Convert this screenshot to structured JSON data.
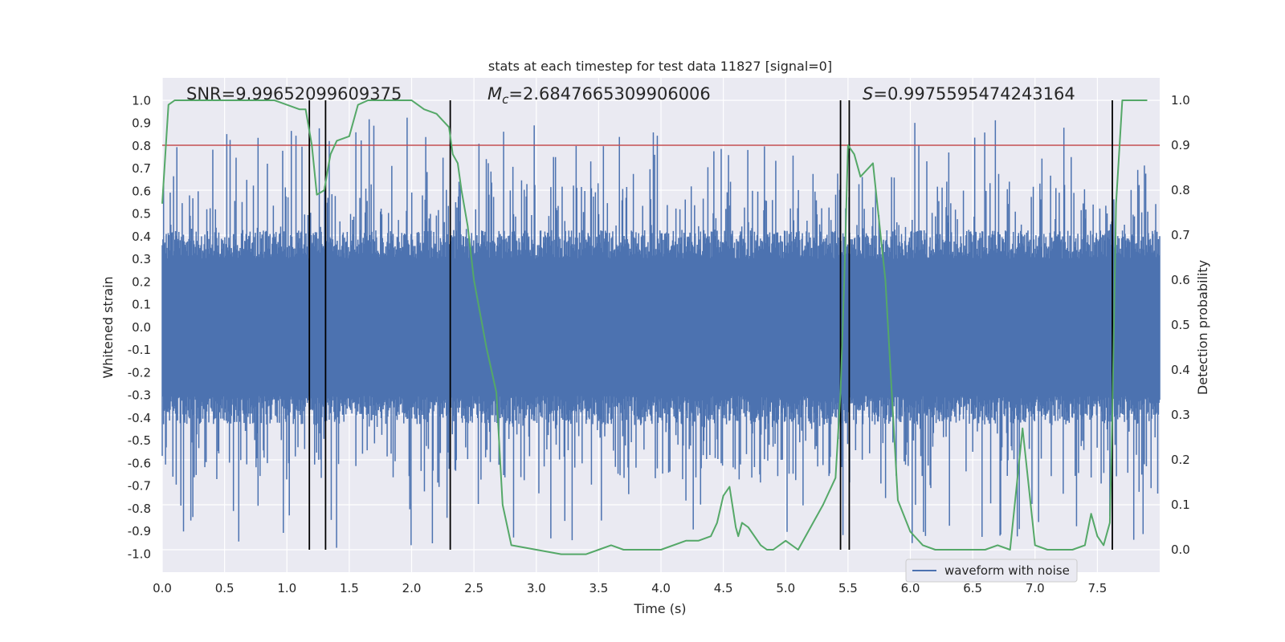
{
  "chart_data": {
    "type": "line",
    "title": "stats at each timestep for test data 11827 [signal=0]",
    "xlabel": "Time (s)",
    "ylabel_left": "Whitened strain",
    "ylabel_right": "Detection probability",
    "xlim": [
      0.0,
      8.0
    ],
    "ylim_left": [
      -1.08,
      1.1
    ],
    "ylim_right": [
      -0.05,
      1.05
    ],
    "x_ticks": [
      "0.0",
      "0.5",
      "1.0",
      "1.5",
      "2.0",
      "2.5",
      "3.0",
      "3.5",
      "4.0",
      "4.5",
      "5.0",
      "5.5",
      "6.0",
      "6.5",
      "7.0",
      "7.5"
    ],
    "y_left_ticks": [
      "-1.0",
      "-0.9",
      "-0.8",
      "-0.7",
      "-0.6",
      "-0.5",
      "-0.4",
      "-0.3",
      "-0.2",
      "-0.1",
      "0.0",
      "0.1",
      "0.2",
      "0.3",
      "0.4",
      "0.5",
      "0.6",
      "0.7",
      "0.8",
      "0.9",
      "1.0"
    ],
    "y_right_ticks": [
      "0.0",
      "0.1",
      "0.2",
      "0.3",
      "0.4",
      "0.5",
      "0.6",
      "0.7",
      "0.8",
      "0.9",
      "1.0"
    ],
    "annotations": {
      "snr": "SNR=9.99652099609375",
      "mc_symbol": "M",
      "mc_sub": "c",
      "mc_value": "=2.6847665309906006",
      "s_symbol": "S",
      "s_value": "=0.9975595474243164"
    },
    "threshold": {
      "value": 0.9,
      "axis": "right",
      "color": "#c44e52"
    },
    "event_lines": [
      1.18,
      1.31,
      2.31,
      5.44,
      5.51,
      7.62
    ],
    "legend": {
      "label": "waveform with noise",
      "position": "lower-right"
    },
    "series": [
      {
        "name": "waveform with noise",
        "axis": "left",
        "color": "#4c72b0",
        "kind": "noise",
        "typical_range": [
          -0.42,
          0.42
        ],
        "peak_range": [
          -0.98,
          0.93
        ]
      },
      {
        "name": "detection probability",
        "axis": "right",
        "color": "#55a868",
        "x": [
          0.0,
          0.05,
          0.1,
          0.15,
          0.3,
          0.5,
          0.7,
          0.9,
          1.0,
          1.1,
          1.15,
          1.2,
          1.24,
          1.3,
          1.33,
          1.35,
          1.4,
          1.5,
          1.57,
          1.65,
          1.8,
          2.0,
          2.1,
          2.2,
          2.3,
          2.33,
          2.37,
          2.4,
          2.45,
          2.5,
          2.6,
          2.68,
          2.73,
          2.8,
          3.0,
          3.2,
          3.4,
          3.5,
          3.6,
          3.7,
          3.8,
          4.0,
          4.2,
          4.3,
          4.4,
          4.45,
          4.5,
          4.55,
          4.6,
          4.62,
          4.65,
          4.7,
          4.8,
          4.85,
          4.9,
          5.0,
          5.1,
          5.2,
          5.3,
          5.4,
          5.44,
          5.47,
          5.5,
          5.55,
          5.6,
          5.7,
          5.8,
          5.9,
          6.0,
          6.1,
          6.2,
          6.4,
          6.6,
          6.7,
          6.8,
          6.9,
          7.0,
          7.1,
          7.3,
          7.4,
          7.45,
          7.5,
          7.55,
          7.6,
          7.62,
          7.65,
          7.7,
          7.8,
          7.9
        ],
        "values": [
          0.77,
          0.99,
          1.0,
          1.0,
          1.0,
          1.0,
          1.0,
          1.0,
          0.99,
          0.98,
          0.98,
          0.9,
          0.79,
          0.8,
          0.85,
          0.88,
          0.91,
          0.92,
          0.99,
          1.0,
          1.0,
          1.0,
          0.98,
          0.97,
          0.94,
          0.88,
          0.86,
          0.8,
          0.72,
          0.6,
          0.45,
          0.35,
          0.1,
          0.01,
          0.0,
          -0.01,
          -0.01,
          0.0,
          0.01,
          0.0,
          0.0,
          0.0,
          0.02,
          0.02,
          0.03,
          0.06,
          0.12,
          0.14,
          0.05,
          0.03,
          0.06,
          0.05,
          0.01,
          0.0,
          0.0,
          0.02,
          0.0,
          0.05,
          0.1,
          0.16,
          0.35,
          0.6,
          0.9,
          0.88,
          0.83,
          0.86,
          0.6,
          0.11,
          0.04,
          0.01,
          0.0,
          0.0,
          0.0,
          0.01,
          0.0,
          0.27,
          0.01,
          0.0,
          0.0,
          0.01,
          0.08,
          0.03,
          0.01,
          0.06,
          0.3,
          0.77,
          1.0,
          1.0,
          1.0
        ]
      }
    ]
  }
}
